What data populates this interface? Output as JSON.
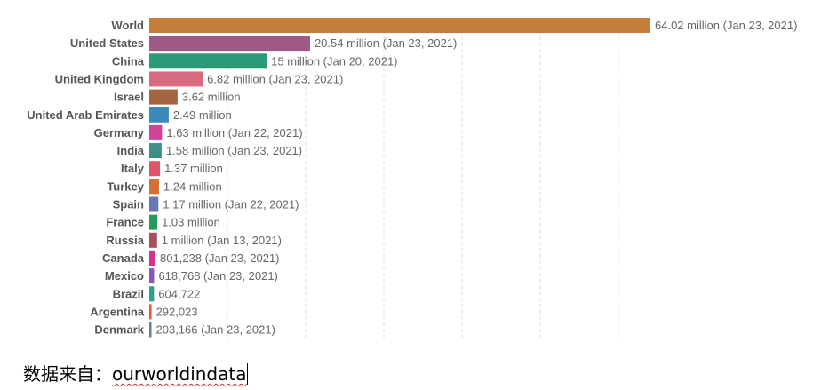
{
  "chart_data": {
    "type": "bar",
    "orientation": "horizontal",
    "grid": true,
    "xlim": [
      0,
      64.02
    ],
    "categories": [
      "World",
      "United States",
      "China",
      "United Kingdom",
      "Israel",
      "United Arab Emirates",
      "Germany",
      "India",
      "Italy",
      "Turkey",
      "Spain",
      "France",
      "Russia",
      "Canada",
      "Mexico",
      "Brazil",
      "Argentina",
      "Denmark"
    ],
    "values": [
      64.02,
      20.54,
      15,
      6.82,
      3.62,
      2.49,
      1.63,
      1.58,
      1.37,
      1.24,
      1.17,
      1.03,
      1.0,
      0.801238,
      0.618768,
      0.604722,
      0.292023,
      0.203166
    ],
    "labels": [
      "64.02 million (Jan 23, 2021)",
      "20.54 million (Jan 23, 2021)",
      "15 million (Jan 20, 2021)",
      "6.82 million (Jan 23, 2021)",
      "3.62 million",
      "2.49 million",
      "1.63 million (Jan 22, 2021)",
      "1.58 million (Jan 23, 2021)",
      "1.37 million",
      "1.24 million",
      "1.17 million (Jan 22, 2021)",
      "1.03 million",
      "1 million (Jan 13, 2021)",
      "801,238 (Jan 23, 2021)",
      "618,768 (Jan 23, 2021)",
      "604,722",
      "292,023",
      "203,166 (Jan 23, 2021)"
    ],
    "colors": [
      "#c47f3b",
      "#9c5a85",
      "#2a9a78",
      "#d86a7f",
      "#a3643f",
      "#3a8bbb",
      "#cf4497",
      "#3f8f86",
      "#e0546a",
      "#d46f35",
      "#6679b3",
      "#249a57",
      "#a84d5c",
      "#d3348a",
      "#8a56b8",
      "#2f9e8f",
      "#e05a38",
      "#5a7fa8"
    ]
  },
  "footer": {
    "source_prefix": "数据来自：",
    "source_name": "ourworldindata"
  }
}
